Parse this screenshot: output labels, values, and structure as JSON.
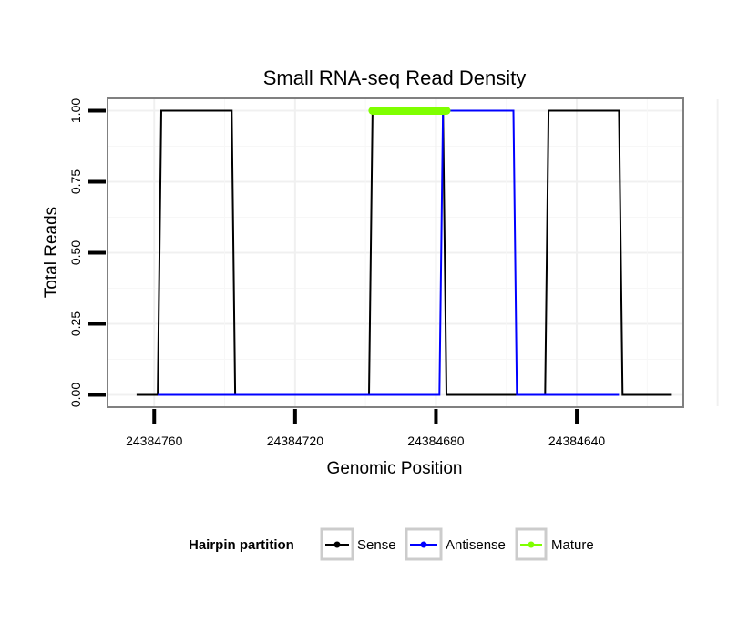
{
  "chart_data": {
    "type": "line",
    "title": "Small RNA-seq Read Density",
    "xlabel": "Genomic Position",
    "ylabel": "Total Reads",
    "x_reversed": true,
    "xlim": [
      24384773,
      24384610
    ],
    "ylim": [
      -0.04,
      1.04
    ],
    "x_ticks": [
      24384760,
      24384720,
      24384680,
      24384640
    ],
    "x_tick_labels": [
      "24384760",
      "24384720",
      "24384680",
      "24384640"
    ],
    "y_ticks": [
      0,
      0.25,
      0.5,
      0.75,
      1
    ],
    "y_tick_labels": [
      "0.00",
      "0.25",
      "0.50",
      "0.75",
      "1.00"
    ],
    "grid": true,
    "legend_title": "Hairpin partition",
    "legend_position": "bottom",
    "series": [
      {
        "name": "Sense",
        "color": "#000000",
        "x": [
          24384765,
          24384759,
          24384758,
          24384738,
          24384737,
          24384700,
          24384699,
          24384698,
          24384678,
          24384677,
          24384650,
          24384649,
          24384648,
          24384628,
          24384627,
          24384613
        ],
        "y": [
          0,
          0,
          1,
          1,
          0,
          0,
          0,
          1,
          1,
          0,
          0,
          0,
          1,
          1,
          0,
          0
        ]
      },
      {
        "name": "Antisense",
        "color": "#0000ff",
        "x": [
          24384759,
          24384700,
          24384679,
          24384678,
          24384658,
          24384657,
          24384628
        ],
        "y": [
          0,
          0,
          0,
          1,
          1,
          0,
          0
        ]
      },
      {
        "name": "Mature",
        "color": "#7fff00",
        "x": [
          24384698,
          24384677
        ],
        "y": [
          1,
          1
        ]
      }
    ]
  }
}
